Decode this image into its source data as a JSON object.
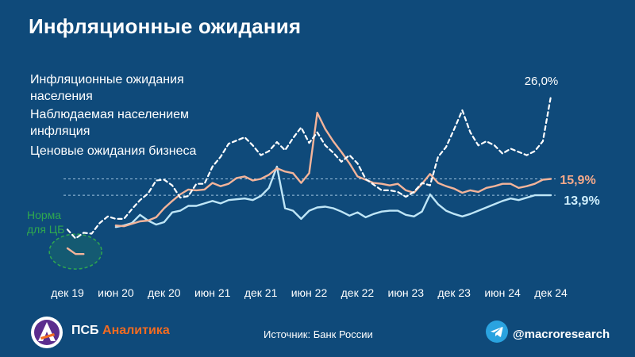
{
  "title": "Инфляционные ожидания",
  "legend": [
    {
      "label": "Инфляционные ожидания населения",
      "color": "#ffffff"
    },
    {
      "label": "Наблюдаемая населением инфляция",
      "color": "#f4b49a"
    },
    {
      "label": "Ценовые ожидания бизнеса",
      "color": "#ffffff"
    }
  ],
  "norm_label": "Норма для ЦБ",
  "colors": {
    "background": "#0f4a7a",
    "households_expectations": "#ffffff",
    "observed_inflation": "#f4b49a",
    "business_expectations": "#bfe6f7",
    "norm": "#2fa84f",
    "brand_orange": "#f26b21",
    "telegram": "#2aa3e0"
  },
  "footer": {
    "brand_part1": "ПСБ",
    "brand_part2": "Аналитика",
    "source": "Источник: Банк России",
    "handle": "@macroresearch",
    "logo_icon": "psb-logo-icon",
    "telegram_icon": "telegram-icon"
  },
  "chart_data": {
    "type": "line",
    "title": "Инфляционные ожидания",
    "x_ticks": [
      "дек 19",
      "июн 20",
      "дек 20",
      "июн 21",
      "дек 21",
      "июн 22",
      "дек 22",
      "июн 23",
      "дек 23",
      "июн 24",
      "дек 24"
    ],
    "y_unit": "%",
    "ylim": [
      4,
      31
    ],
    "grid": false,
    "legend_position": "top-left",
    "reference_lines": [
      15.9,
      13.9
    ],
    "end_labels": [
      {
        "series": "Инфляционные ожидания населения",
        "text": "26,0%"
      },
      {
        "series": "Наблюдаемая населением инфляция",
        "text": "15,9%"
      },
      {
        "series": "Ценовые ожидания бизнеса",
        "text": "13,9%"
      }
    ],
    "series": [
      {
        "name": "Инфляционные ожидания населения",
        "style": "dashed",
        "x": [
          0,
          1,
          2,
          3,
          4,
          5,
          6,
          7,
          8,
          9,
          10,
          11,
          12,
          13,
          14,
          15,
          16,
          17,
          18,
          19,
          20,
          21,
          22,
          23,
          24,
          25,
          26,
          27,
          28,
          29,
          30,
          31,
          32,
          33,
          34,
          35,
          36,
          37,
          38,
          39,
          40,
          41,
          42,
          43,
          44,
          45,
          46,
          47,
          48,
          49,
          50,
          51,
          52,
          53,
          54,
          55,
          56,
          57,
          58,
          59,
          60
        ],
        "values": [
          9.7,
          8.6,
          9.3,
          9.2,
          10.5,
          11.3,
          11.0,
          11.0,
          12.2,
          13.3,
          14.1,
          15.7,
          15.8,
          15.1,
          13.6,
          13.8,
          15.3,
          15.3,
          17.4,
          18.6,
          20.2,
          20.6,
          21.0,
          20.0,
          18.8,
          19.3,
          20.4,
          19.4,
          20.9,
          22.2,
          20.3,
          21.6,
          20.0,
          19.1,
          18.0,
          18.8,
          17.8,
          15.9,
          15.2,
          14.5,
          14.5,
          14.3,
          13.7,
          14.3,
          15.4,
          15.1,
          18.6,
          19.8,
          22.0,
          24.3,
          21.6,
          20.0,
          20.5,
          20.0,
          19.0,
          19.6,
          19.2,
          18.8,
          19.3,
          20.5,
          26.0
        ]
      },
      {
        "name": "Наблюдаемая населением инфляция",
        "style": "solid",
        "x": [
          6,
          7,
          8,
          9,
          10,
          11,
          12,
          13,
          14,
          15,
          16,
          17,
          18,
          19,
          20,
          21,
          22,
          23,
          24,
          25,
          26,
          27,
          28,
          29,
          30,
          31,
          32,
          33,
          34,
          35,
          36,
          37,
          38,
          39,
          40,
          41,
          42,
          43,
          44,
          45,
          46,
          47,
          48,
          49,
          50,
          51,
          52,
          53,
          54,
          55,
          56,
          57,
          58,
          59,
          60
        ],
        "values": [
          10.2,
          10.1,
          10.4,
          10.7,
          10.8,
          11.2,
          12.3,
          13.2,
          14.0,
          14.6,
          14.5,
          14.6,
          15.4,
          15.0,
          15.3,
          16.0,
          16.2,
          15.7,
          15.9,
          16.4,
          17.2,
          16.8,
          16.6,
          15.4,
          16.6,
          24.0,
          22.0,
          20.5,
          19.2,
          17.8,
          16.2,
          15.8,
          15.4,
          15.3,
          15.1,
          15.3,
          14.5,
          14.2,
          15.3,
          16.5,
          15.4,
          15.0,
          14.7,
          14.2,
          14.5,
          14.3,
          14.8,
          15.0,
          15.3,
          15.3,
          14.8,
          15.0,
          15.3,
          15.8,
          15.9
        ]
      },
      {
        "name": "Ценовые ожидания бизнеса",
        "style": "solid",
        "x": [
          6,
          7,
          8,
          9,
          10,
          11,
          12,
          13,
          14,
          15,
          16,
          17,
          18,
          19,
          20,
          21,
          22,
          23,
          24,
          25,
          26,
          27,
          28,
          29,
          30,
          31,
          32,
          33,
          34,
          35,
          36,
          37,
          38,
          39,
          40,
          41,
          42,
          43,
          44,
          45,
          46,
          47,
          48,
          49,
          50,
          51,
          52,
          53,
          54,
          55,
          56,
          57,
          58,
          59,
          60
        ],
        "values": [
          10.0,
          10.2,
          10.5,
          11.5,
          10.8,
          10.3,
          10.6,
          11.8,
          12.0,
          12.6,
          12.6,
          12.9,
          13.2,
          12.9,
          13.3,
          13.4,
          13.5,
          13.3,
          13.8,
          14.8,
          17.4,
          12.3,
          12.0,
          11.0,
          12.0,
          12.4,
          12.5,
          12.3,
          11.9,
          11.4,
          11.8,
          11.2,
          11.6,
          11.9,
          12.0,
          12.0,
          11.5,
          11.3,
          11.9,
          14.0,
          12.8,
          12.0,
          11.6,
          11.3,
          11.6,
          12.0,
          12.4,
          12.8,
          13.2,
          13.5,
          13.3,
          13.6,
          13.9,
          13.9,
          13.9
        ]
      },
      {
        "name": "",
        "style": "solid",
        "x": [
          0,
          1,
          2
        ],
        "values": [
          7.4,
          6.7,
          6.7
        ]
      }
    ]
  }
}
